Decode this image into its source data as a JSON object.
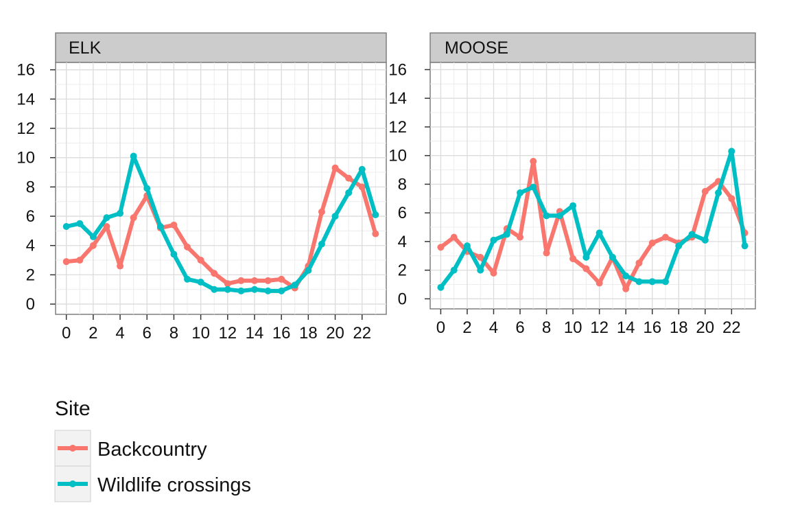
{
  "chart_data": [
    {
      "type": "line",
      "title": "ELK",
      "xlabel": "",
      "ylabel": "",
      "xlim": [
        -0.8,
        23.8
      ],
      "ylim": [
        -0.7,
        16.5
      ],
      "xticks": [
        0,
        2,
        4,
        6,
        8,
        10,
        12,
        14,
        16,
        18,
        20,
        22
      ],
      "xtick_labels": [
        "0",
        "2",
        "4",
        "6",
        "8",
        "10",
        "12",
        "14",
        "16",
        "18",
        "20",
        "22"
      ],
      "yticks": [
        0,
        2,
        4,
        6,
        8,
        10,
        12,
        14,
        16
      ],
      "ytick_labels": [
        "0",
        "2",
        "4",
        "6",
        "8",
        "10",
        "12",
        "14",
        "16"
      ],
      "x": [
        0,
        1,
        2,
        3,
        4,
        5,
        6,
        7,
        8,
        9,
        10,
        11,
        12,
        13,
        14,
        15,
        16,
        17,
        18,
        19,
        20,
        21,
        22,
        23
      ],
      "series": [
        {
          "name": "Backcountry",
          "color": "#F8766D",
          "values": [
            2.9,
            3.0,
            4.0,
            5.3,
            2.6,
            5.9,
            7.4,
            5.2,
            5.4,
            3.9,
            3.0,
            2.1,
            1.4,
            1.6,
            1.6,
            1.6,
            1.7,
            1.1,
            2.6,
            6.3,
            9.3,
            8.6,
            8.0,
            4.8
          ]
        },
        {
          "name": "Wildlife crossings",
          "color": "#00BFC4",
          "values": [
            5.3,
            5.5,
            4.6,
            5.9,
            6.2,
            10.1,
            7.9,
            5.3,
            3.4,
            1.7,
            1.5,
            1.0,
            1.0,
            0.9,
            1.0,
            0.9,
            0.9,
            1.3,
            2.3,
            4.1,
            6.0,
            7.6,
            9.2,
            6.1
          ]
        }
      ]
    },
    {
      "type": "line",
      "title": "MOOSE",
      "xlabel": "",
      "ylabel": "",
      "xlim": [
        -0.8,
        23.8
      ],
      "ylim": [
        -0.7,
        16.5
      ],
      "xticks": [
        0,
        2,
        4,
        6,
        8,
        10,
        12,
        14,
        16,
        18,
        20,
        22
      ],
      "xtick_labels": [
        "0",
        "2",
        "4",
        "6",
        "8",
        "10",
        "12",
        "14",
        "16",
        "18",
        "20",
        "22"
      ],
      "yticks": [
        0,
        2,
        4,
        6,
        8,
        10,
        12,
        14,
        16
      ],
      "ytick_labels": [
        "0",
        "2",
        "4",
        "6",
        "8",
        "10",
        "12",
        "14",
        "16"
      ],
      "x": [
        0,
        1,
        2,
        3,
        4,
        5,
        6,
        7,
        8,
        9,
        10,
        11,
        12,
        13,
        14,
        15,
        16,
        17,
        18,
        19,
        20,
        21,
        22,
        23
      ],
      "series": [
        {
          "name": "Backcountry",
          "color": "#F8766D",
          "values": [
            3.6,
            4.3,
            3.3,
            2.9,
            1.8,
            4.9,
            4.3,
            9.6,
            3.2,
            6.1,
            2.8,
            2.1,
            1.1,
            2.9,
            0.7,
            2.5,
            3.9,
            4.3,
            3.9,
            4.3,
            7.5,
            8.2,
            7.0,
            4.6
          ]
        },
        {
          "name": "Wildlife crossings",
          "color": "#00BFC4",
          "values": [
            0.8,
            2.0,
            3.7,
            2.0,
            4.1,
            4.5,
            7.4,
            7.8,
            5.8,
            5.8,
            6.5,
            2.9,
            4.6,
            2.9,
            1.6,
            1.2,
            1.2,
            1.2,
            3.7,
            4.5,
            4.1,
            7.4,
            10.3,
            3.7
          ]
        }
      ]
    }
  ],
  "legend": {
    "title": "Site",
    "items": [
      {
        "label": "Backcountry",
        "color": "#F8766D"
      },
      {
        "label": "Wildlife crossings",
        "color": "#00BFC4"
      }
    ]
  }
}
